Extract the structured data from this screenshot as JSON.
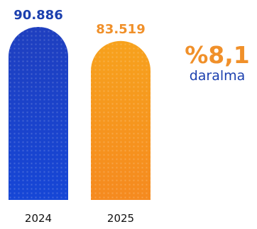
{
  "chart_data": {
    "type": "bar",
    "categories": [
      "2024",
      "2025"
    ],
    "values": [
      90886,
      83519
    ],
    "value_labels": [
      "90.886",
      "83.519"
    ],
    "colors": {
      "2024": {
        "top": "#1f3fbf",
        "bottom": "#1646d6",
        "label": "#1b3fae"
      },
      "2025": {
        "top": "#f7a21d",
        "bottom": "#f58a1f",
        "label": "#f0902a"
      }
    },
    "ylim": [
      0,
      90886
    ],
    "grid": false,
    "legend": "none",
    "annotation": {
      "value": "%8,1",
      "label": "daralma",
      "value_color": "#f0902a",
      "label_color": "#1b3fae"
    }
  }
}
